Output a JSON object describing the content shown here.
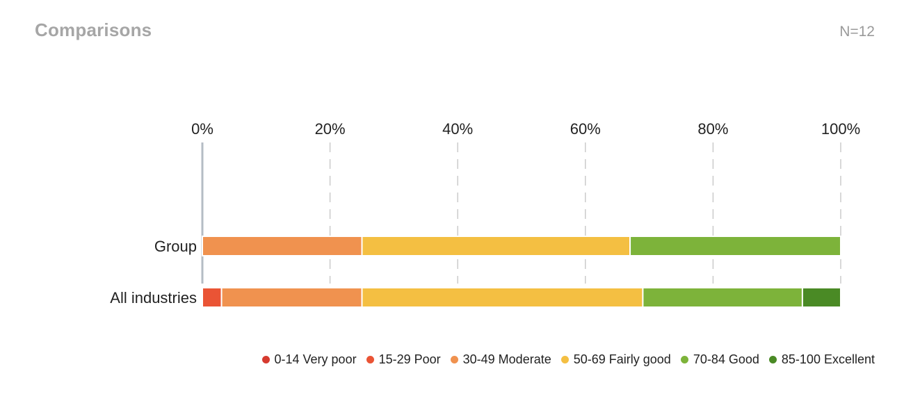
{
  "header": {
    "title": "Comparisons",
    "n_label": "N=12"
  },
  "chart_data": {
    "type": "bar",
    "orientation": "horizontal",
    "stacked": true,
    "x_ticks": [
      "0%",
      "20%",
      "40%",
      "60%",
      "80%",
      "100%"
    ],
    "xlim": [
      0,
      100
    ],
    "grid": "vertical dashed",
    "legend_position": "bottom-right",
    "categories": [
      "Group",
      "All industries"
    ],
    "series": [
      {
        "name": "0-14 Very poor",
        "color": "#d63a2f",
        "values": [
          0,
          0
        ]
      },
      {
        "name": "15-29 Poor",
        "color": "#ea5435",
        "values": [
          0,
          3
        ]
      },
      {
        "name": "30-49 Moderate",
        "color": "#f0924f",
        "values": [
          25,
          22
        ]
      },
      {
        "name": "50-69 Fairly good",
        "color": "#f4bf42",
        "values": [
          42,
          44
        ]
      },
      {
        "name": "70-84 Good",
        "color": "#7db33a",
        "values": [
          33,
          25
        ]
      },
      {
        "name": "85-100 Excellent",
        "color": "#4a8a25",
        "values": [
          0,
          6
        ]
      }
    ]
  }
}
